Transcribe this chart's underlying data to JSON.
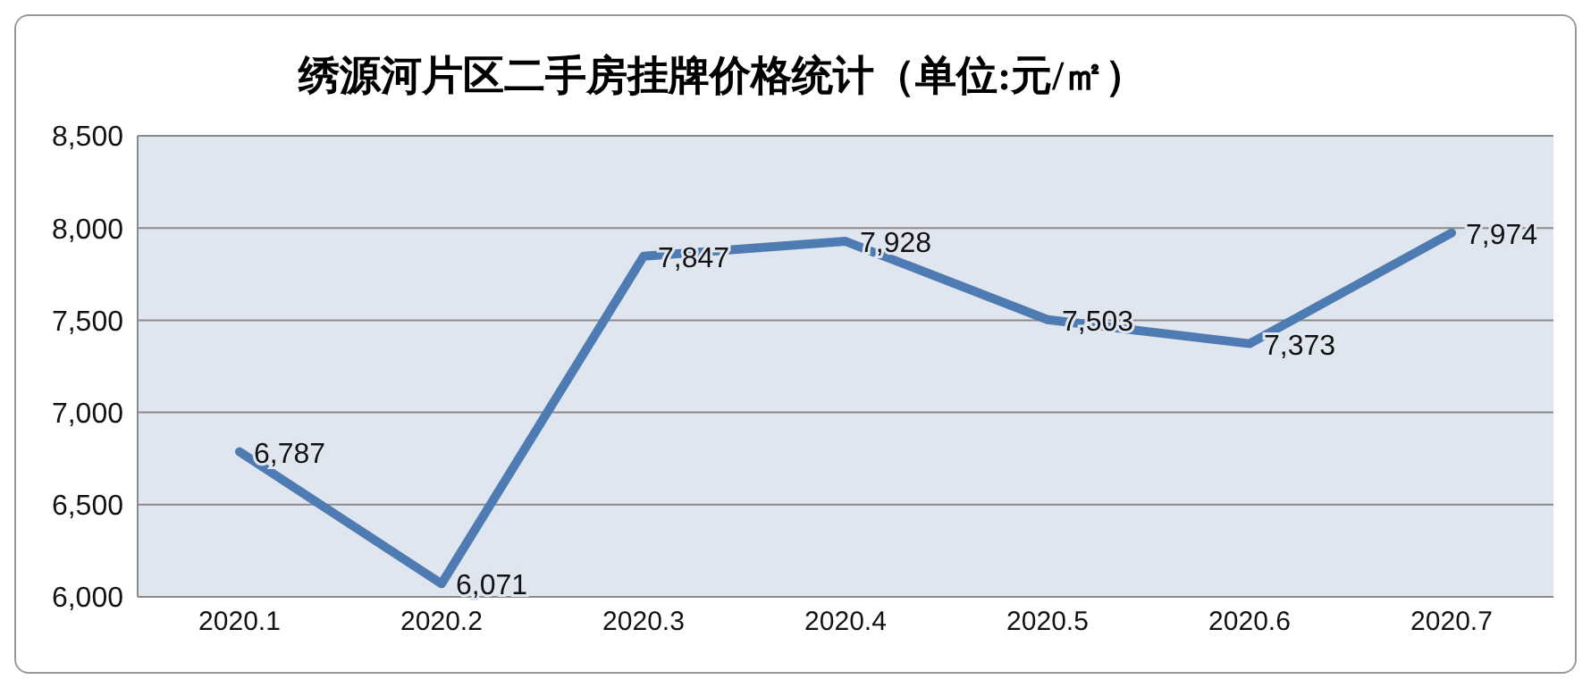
{
  "chart_data": {
    "type": "line",
    "title": "绣源河片区二手房挂牌价格统计（单位:元/㎡）",
    "categories": [
      "2020.1",
      "2020.2",
      "2020.3",
      "2020.4",
      "2020.5",
      "2020.6",
      "2020.7"
    ],
    "series": [
      {
        "color": "#4f7bb3",
        "values": [
          6787,
          6071,
          7847,
          7928,
          7503,
          7373,
          7974
        ],
        "value_labels": [
          "6,787",
          "6,071",
          "7,847",
          "7,928",
          "7,503",
          "7,373",
          "7,974"
        ]
      }
    ],
    "ylim": [
      6000,
      8500
    ],
    "yticks": [
      {
        "value": 6000,
        "label": "6,000"
      },
      {
        "value": 6500,
        "label": "6,500"
      },
      {
        "value": 7000,
        "label": "7,000"
      },
      {
        "value": 7500,
        "label": "7,500"
      },
      {
        "value": 8000,
        "label": "8,000"
      },
      {
        "value": 8500,
        "label": "8,500"
      }
    ],
    "grid": "y",
    "legend": false,
    "marker": "none",
    "line_style": "solid"
  }
}
